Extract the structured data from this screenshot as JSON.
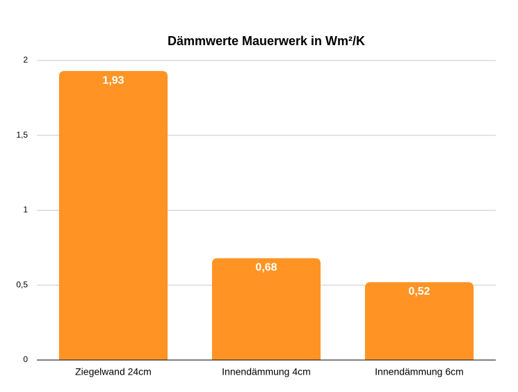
{
  "chart_data": {
    "type": "bar",
    "title": "Dämmwerte Mauerwerk in Wm²/K",
    "categories": [
      "Ziegelwand 24cm",
      "Innendämmung 4cm",
      "Innendämmung 6cm"
    ],
    "values": [
      1.93,
      0.68,
      0.52
    ],
    "value_labels": [
      "1,93",
      "0,68",
      "0,52"
    ],
    "color": "#ff9424",
    "ylim": [
      0,
      2
    ],
    "yticks": [
      0,
      {
        "value": 0.5,
        "label": "0,5"
      },
      1,
      {
        "value": 1.5,
        "label": "1,5"
      },
      2
    ],
    "grid": true
  }
}
